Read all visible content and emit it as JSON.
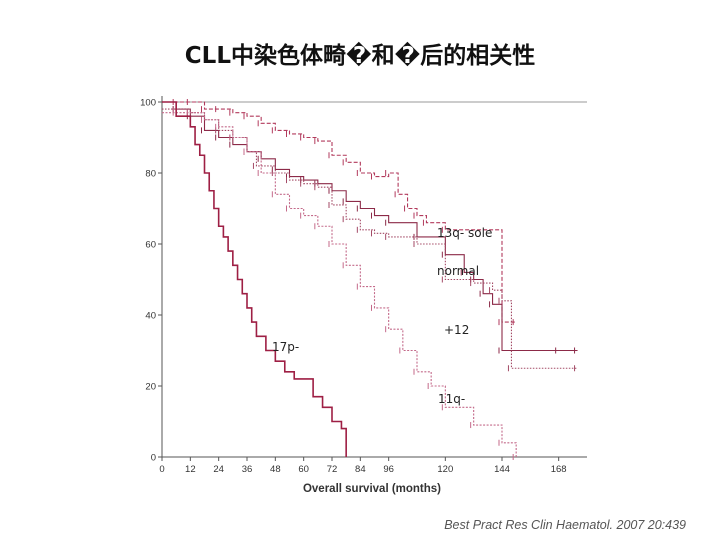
{
  "page": {
    "title": "CLL中染色体畸�和�后的相关性",
    "citation": "Best Pract Res Clin Haematol. 2007 20:439"
  },
  "chart_data": {
    "type": "line",
    "title": "CLL中染色体畸�和�后的相关性",
    "xlabel": "Overall survival (months)",
    "ylabel": "",
    "xlim": [
      0,
      180
    ],
    "ylim": [
      0,
      100
    ],
    "x_ticks": [
      0,
      12,
      24,
      36,
      48,
      60,
      72,
      84,
      96,
      120,
      144,
      168
    ],
    "y_ticks": [
      0,
      20,
      40,
      60,
      80,
      100
    ],
    "grid": false,
    "colors": {
      "13q- sole": "#b23a5c",
      "normal": "#8c2a48",
      "+12": "#a34a66",
      "11q-": "#c46a8a",
      "17p-": "#9e1f44"
    },
    "series": [
      {
        "name": "13q- sole",
        "x": [
          0,
          6,
          12,
          18,
          24,
          30,
          36,
          42,
          48,
          54,
          60,
          66,
          72,
          78,
          84,
          90,
          96,
          100,
          104,
          108,
          112,
          120,
          144,
          150
        ],
        "y": [
          100,
          100,
          100,
          98,
          98,
          97,
          96,
          94,
          92,
          91,
          90,
          89,
          85,
          83,
          80,
          79,
          80,
          74,
          70,
          68,
          66,
          64,
          38,
          38
        ]
      },
      {
        "name": "normal",
        "x": [
          0,
          6,
          12,
          18,
          24,
          30,
          36,
          42,
          48,
          54,
          60,
          66,
          72,
          78,
          84,
          90,
          96,
          108,
          120,
          128,
          132,
          136,
          140,
          144,
          168,
          176
        ],
        "y": [
          100,
          98,
          96,
          92,
          90,
          88,
          86,
          84,
          81,
          79,
          78,
          77,
          75,
          72,
          70,
          68,
          66,
          62,
          57,
          52,
          50,
          46,
          43,
          30,
          30,
          30
        ]
      },
      {
        "name": "+12",
        "x": [
          0,
          6,
          12,
          18,
          24,
          30,
          36,
          40,
          48,
          54,
          60,
          66,
          72,
          78,
          84,
          90,
          96,
          108,
          120,
          132,
          140,
          144,
          148,
          176
        ],
        "y": [
          98,
          98,
          97,
          95,
          92,
          90,
          86,
          82,
          80,
          78,
          77,
          76,
          71,
          67,
          64,
          63,
          62,
          60,
          50,
          49,
          47,
          44,
          25,
          25
        ]
      },
      {
        "name": "11q-",
        "x": [
          0,
          6,
          12,
          18,
          24,
          30,
          36,
          42,
          48,
          54,
          60,
          66,
          72,
          78,
          84,
          90,
          96,
          102,
          108,
          114,
          120,
          132,
          144,
          150
        ],
        "y": [
          97,
          97,
          97,
          95,
          93,
          90,
          86,
          80,
          74,
          70,
          68,
          65,
          60,
          54,
          48,
          42,
          36,
          30,
          24,
          20,
          14,
          9,
          4,
          0
        ]
      },
      {
        "name": "17p-",
        "x": [
          0,
          6,
          12,
          14,
          16,
          18,
          20,
          22,
          24,
          26,
          28,
          30,
          32,
          34,
          36,
          38,
          40,
          44,
          48,
          52,
          56,
          60,
          64,
          68,
          72,
          76,
          78
        ],
        "y": [
          100,
          96,
          93,
          88,
          85,
          80,
          75,
          70,
          65,
          62,
          58,
          54,
          50,
          46,
          42,
          38,
          34,
          30,
          27,
          24,
          22,
          22,
          17,
          14,
          10,
          8,
          0
        ]
      }
    ],
    "annotations": {
      "13q- sole": "13q- sole",
      "normal": "normal",
      "+12": "+12",
      "11q-": "11q-",
      "17p-": "17p-"
    }
  }
}
